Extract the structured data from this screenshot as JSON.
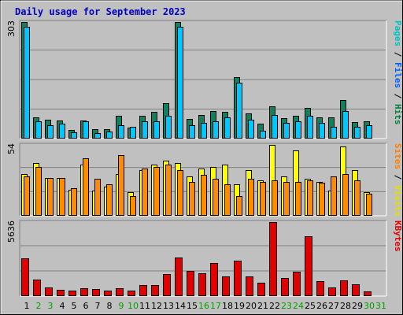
{
  "chart_data": {
    "type": "bar",
    "title": "Daily usage for September 2023",
    "days": [
      "1",
      "2",
      "3",
      "4",
      "5",
      "6",
      "7",
      "8",
      "9",
      "10",
      "11",
      "12",
      "13",
      "14",
      "15",
      "16",
      "17",
      "18",
      "19",
      "20",
      "21",
      "22",
      "23",
      "24",
      "25",
      "26",
      "27",
      "28",
      "29",
      "30",
      "31"
    ],
    "weekend_days": [
      "2",
      "3",
      "9",
      "10",
      "16",
      "17",
      "23",
      "24",
      "30",
      "31"
    ],
    "panels": [
      {
        "id": "hits-files-pages",
        "ymax_label": "303",
        "ymax": 303,
        "side_labels": [
          {
            "text": "Pages",
            "color": "#00c0c0"
          },
          {
            "text": " / ",
            "color": "#000000"
          },
          {
            "text": "Files",
            "color": "#0060ff"
          },
          {
            "text": " / ",
            "color": "#000000"
          },
          {
            "text": "Hits",
            "color": "#008040"
          }
        ],
        "series": [
          {
            "name": "Hits",
            "color": "#108060",
            "values": [
              303,
              55,
              50,
              48,
              22,
              48,
              25,
              25,
              60,
              28,
              60,
              70,
              92,
              303,
              52,
              62,
              72,
              70,
              160,
              65,
              38,
              84,
              54,
              60,
              80,
              55,
              55,
              100,
              42,
              45,
              0
            ]
          },
          {
            "name": "Files",
            "color": "#00c8ff",
            "values": [
              290,
              45,
              35,
              38,
              17,
              46,
              15,
              18,
              35,
              30,
              45,
              45,
              60,
              290,
              35,
              40,
              45,
              55,
              145,
              50,
              20,
              62,
              40,
              45,
              60,
              40,
              30,
              72,
              30,
              35,
              0
            ]
          },
          {
            "name": "Pages",
            "color": "#00c0c0",
            "values": [
              0,
              0,
              0,
              0,
              0,
              0,
              0,
              0,
              0,
              0,
              0,
              0,
              0,
              0,
              0,
              0,
              0,
              0,
              0,
              0,
              0,
              0,
              0,
              0,
              0,
              0,
              0,
              0,
              0,
              0,
              0
            ]
          }
        ]
      },
      {
        "id": "visits-sites",
        "ymax_label": "54",
        "ymax": 54,
        "side_labels": [
          {
            "text": "Sites",
            "color": "#ff8000"
          },
          {
            "text": " / ",
            "color": "#000000"
          },
          {
            "text": "Visits",
            "color": "#e0e000"
          }
        ],
        "series": [
          {
            "name": "Visits",
            "color": "#ffff00",
            "values": [
              32,
              40,
              29,
              29,
              20,
              39,
              19,
              22,
              32,
              18,
              35,
              39,
              42,
              40,
              30,
              36,
              37,
              39,
              24,
              35,
              27,
              54,
              30,
              50,
              28,
              26,
              19,
              53,
              35,
              18,
              0
            ]
          },
          {
            "name": "Sites",
            "color": "#ff8c00",
            "values": [
              30,
              37,
              29,
              29,
              21,
              44,
              28,
              24,
              46,
              15,
              36,
              37,
              39,
              35,
              26,
              31,
              28,
              24,
              15,
              28,
              26,
              27,
              26,
              26,
              27,
              25,
              30,
              32,
              27,
              17,
              0
            ]
          }
        ]
      },
      {
        "id": "kbytes",
        "ymax_label": "5636",
        "ymax": 5636,
        "side_labels": [
          {
            "text": "KBytes",
            "color": "#e00000"
          }
        ],
        "series": [
          {
            "name": "KBytes",
            "color": "#e00000",
            "values": [
              2900,
              1250,
              630,
              460,
              440,
              570,
              550,
              410,
              600,
              390,
              850,
              830,
              1700,
              2940,
              1900,
              1750,
              2520,
              1480,
              2680,
              1480,
              1010,
              5636,
              1380,
              1850,
              4530,
              1150,
              660,
              1220,
              900,
              330,
              0
            ]
          }
        ]
      }
    ]
  }
}
